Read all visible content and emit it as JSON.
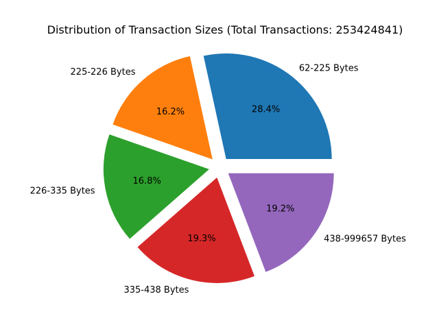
{
  "chart_data": {
    "type": "pie",
    "title": "Distribution of Transaction Sizes (Total Transactions: 253424841)",
    "categories": [
      "62-225 Bytes",
      "225-226 Bytes",
      "226-335 Bytes",
      "335-438 Bytes",
      "438-999657 Bytes"
    ],
    "values": [
      28.4,
      16.2,
      16.8,
      19.3,
      19.2
    ],
    "percent_labels": [
      "28.4%",
      "16.2%",
      "16.8%",
      "19.3%",
      "19.2%"
    ],
    "colors": [
      "#1f77b4",
      "#ff7f0e",
      "#2ca02c",
      "#d62728",
      "#9467bd"
    ],
    "exploded": true,
    "legend": "none"
  }
}
